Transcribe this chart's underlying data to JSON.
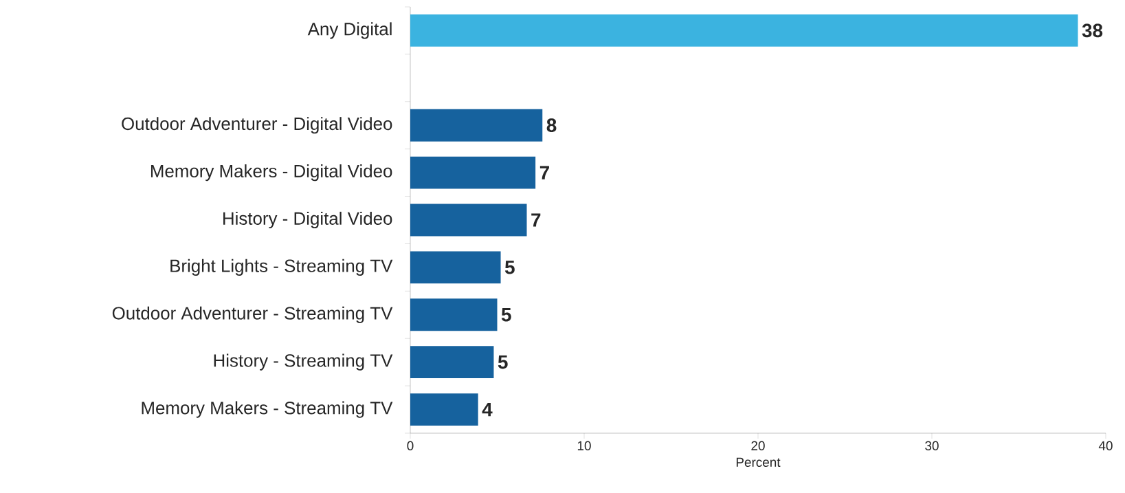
{
  "chart_data": {
    "type": "bar",
    "orientation": "horizontal",
    "xlabel": "Percent",
    "categories": [
      "Any Digital",
      null,
      "Outdoor Adventurer - Digital Video",
      "Memory Makers - Digital Video",
      "History - Digital Video",
      "Bright Lights - Streaming TV",
      "Outdoor Adventurer - Streaming TV",
      "History - Streaming TV",
      "Memory Makers - Streaming TV"
    ],
    "values": [
      38.4,
      null,
      7.6,
      7.2,
      6.7,
      5.2,
      5.0,
      4.8,
      3.9
    ],
    "value_labels": [
      "38",
      null,
      "8",
      "7",
      "7",
      "5",
      "5",
      "5",
      "4"
    ],
    "colors": [
      "#3bb3e0",
      null,
      "#16629e",
      "#16629e",
      "#16629e",
      "#16629e",
      "#16629e",
      "#16629e",
      "#16629e"
    ],
    "xlim": [
      0,
      40
    ],
    "xticks": [
      0,
      10,
      20,
      30,
      40
    ]
  }
}
